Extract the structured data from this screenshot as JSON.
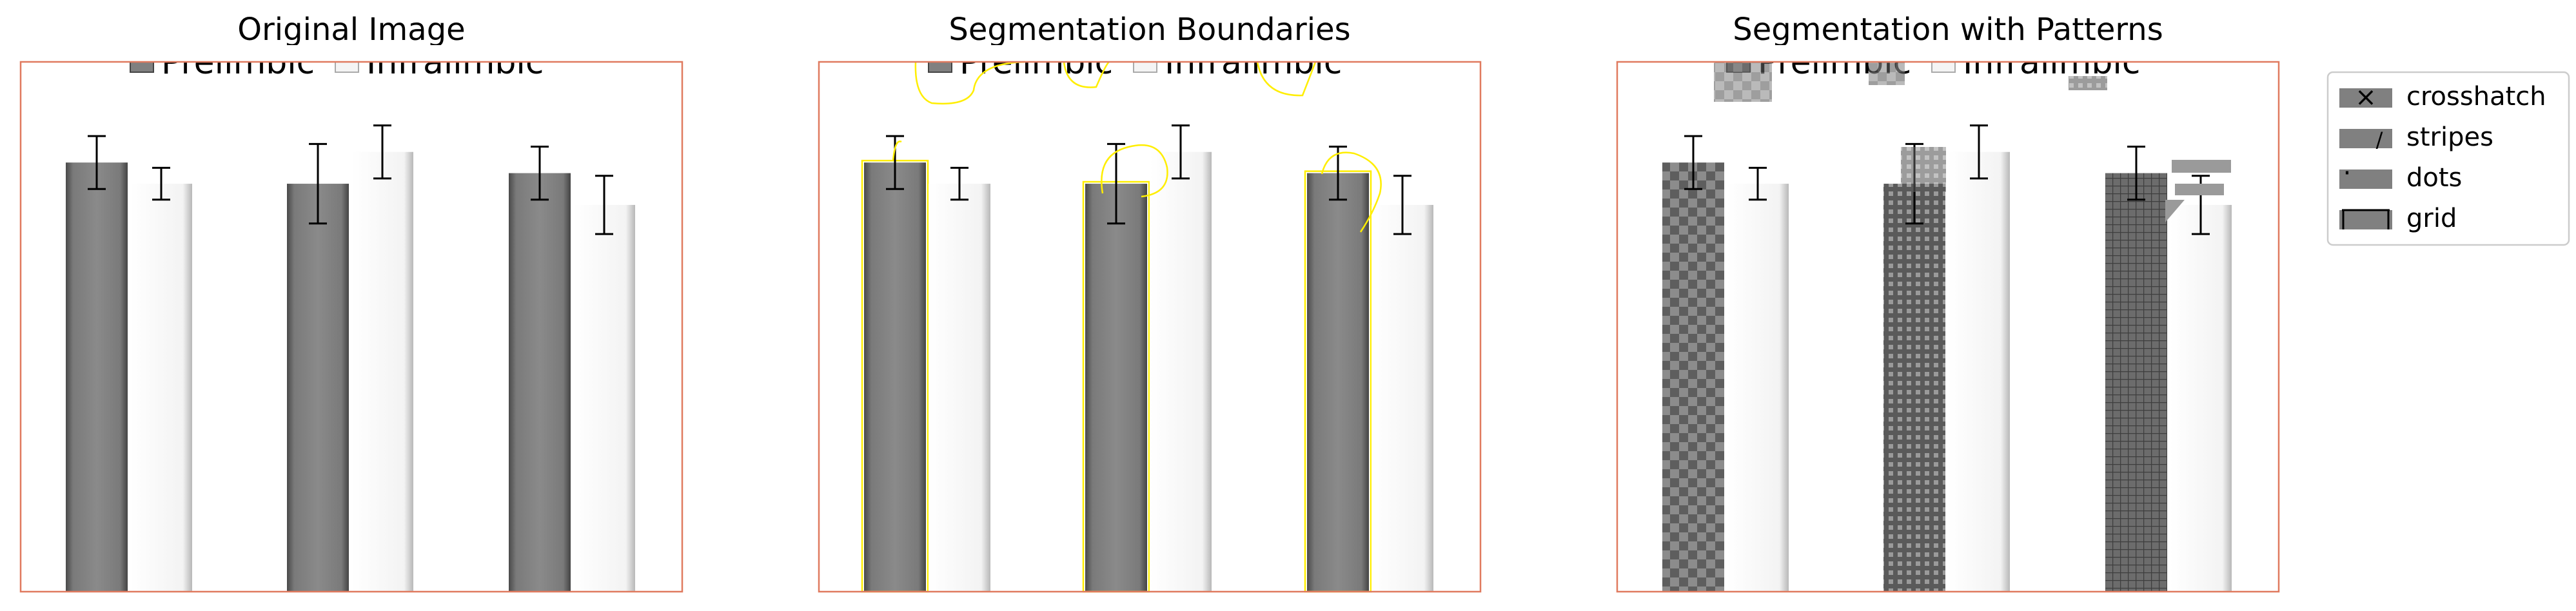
{
  "figure": {
    "panels": [
      {
        "title": "Original Image",
        "variant": "original"
      },
      {
        "title": "Segmentation Boundaries",
        "variant": "boundaries"
      },
      {
        "title": "Segmentation with Patterns",
        "variant": "patterns"
      }
    ],
    "pattern_legend": [
      {
        "label": "crosshatch",
        "marker": "×"
      },
      {
        "label": "stripes",
        "marker": "/"
      },
      {
        "label": "dots",
        "marker": "·"
      },
      {
        "label": "grid",
        "marker": "┬"
      }
    ]
  },
  "chart_data": {
    "type": "bar",
    "categories": [
      "",
      "",
      ""
    ],
    "series": [
      {
        "name": "Prelimbic",
        "values": [
          0.81,
          0.77,
          0.79
        ],
        "errors": [
          0.05,
          0.075,
          0.05
        ]
      },
      {
        "name": "Infralimbic",
        "values": [
          0.77,
          0.83,
          0.73
        ],
        "errors": [
          0.03,
          0.05,
          0.055
        ]
      }
    ],
    "ylim": [
      0,
      1
    ],
    "grid": false,
    "legend_position": "top-center",
    "colors": {
      "prelimbic": "#808080",
      "infralimbic": "#f4f4f4",
      "frame": "#e07a5f",
      "boundary": "#ffee00"
    }
  }
}
